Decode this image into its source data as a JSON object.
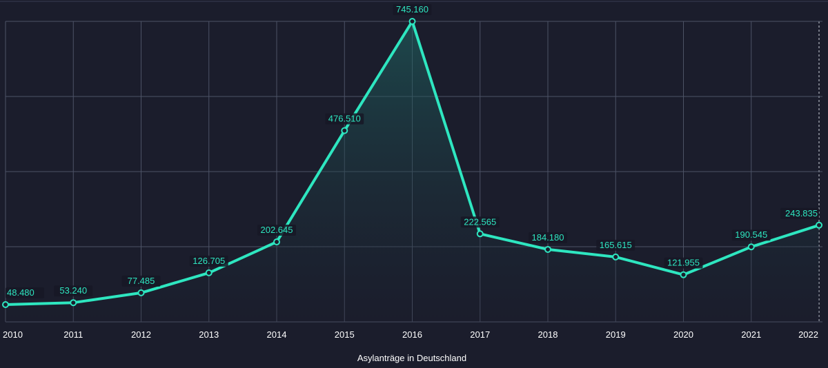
{
  "chart_data": {
    "type": "area",
    "xlabel": "Asylanträge in Deutschland",
    "ylabel": "",
    "categories": [
      "2010",
      "2011",
      "2012",
      "2013",
      "2014",
      "2015",
      "2016",
      "2017",
      "2018",
      "2019",
      "2020",
      "2021",
      "2022"
    ],
    "values": [
      48480,
      53240,
      77485,
      126705,
      202645,
      476510,
      745160,
      222565,
      184180,
      165615,
      121955,
      190545,
      243835
    ],
    "value_labels": [
      "48.480",
      "53.240",
      "77.485",
      "126.705",
      "202.645",
      "476.510",
      "745.160",
      "222.565",
      "184.180",
      "165.615",
      "121.955",
      "190.545",
      "243.835"
    ],
    "ylim": [
      0,
      745160
    ],
    "grid": true,
    "legend": "none",
    "colors": {
      "background": "#1b1d2c",
      "line": "#2ee6c0",
      "grid": "#4d5366",
      "text": "#ffffff",
      "label_bg": "#161826"
    }
  }
}
